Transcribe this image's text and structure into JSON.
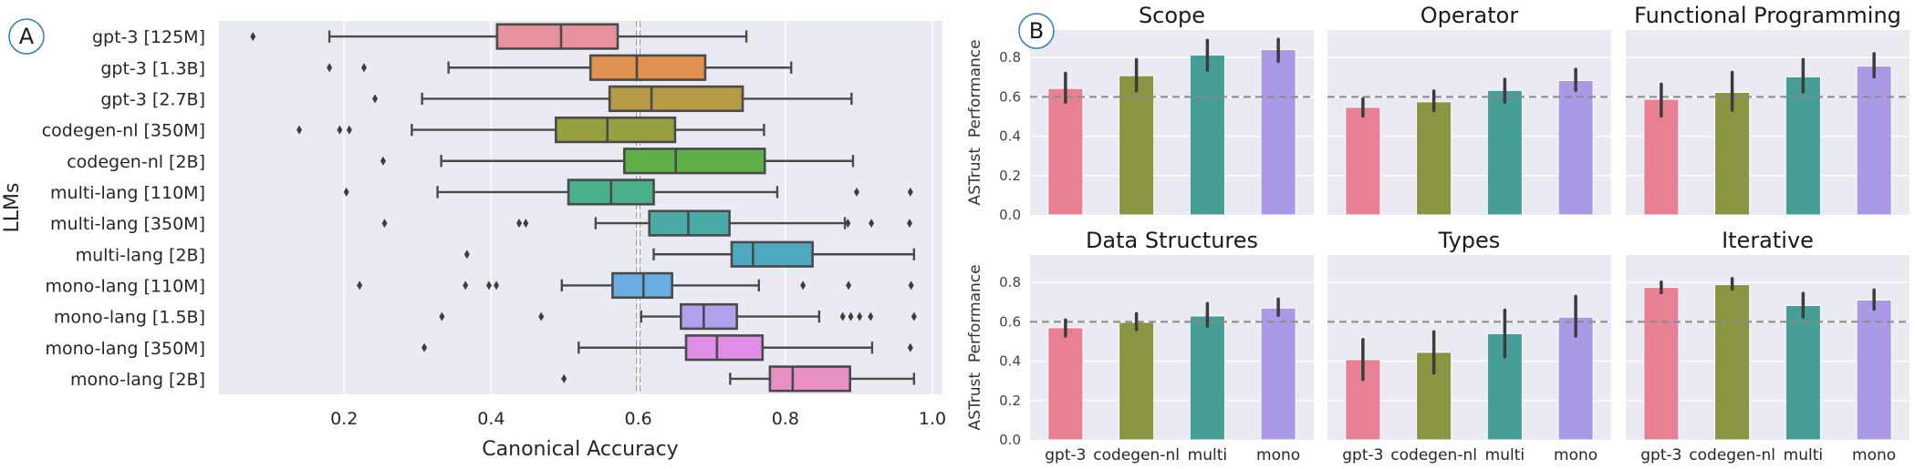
{
  "chart_data": [
    {
      "id": "A",
      "type": "boxplot",
      "panel_label": "A",
      "orientation": "horizontal",
      "title": "",
      "xlabel": "Canonical Accuracy",
      "ylabel": "LLMs",
      "xlim": [
        -0.03,
        1.02
      ],
      "xticks": [
        0.2,
        0.4,
        0.6,
        0.8,
        1.0
      ],
      "xtick_labels": [
        "0.2",
        "0.4",
        "0.6",
        "0.8",
        "1.0"
      ],
      "grid": true,
      "reference_line": 0.6,
      "categories": [
        "gpt-3 [125M]",
        "gpt-3 [1.3B]",
        "gpt-3 [2.7B]",
        "codegen-nl [350M]",
        "codegen-nl [2B]",
        "multi-lang [110M]",
        "multi-lang [350M]",
        "multi-lang [2B]",
        "mono-lang [110M]",
        "mono-lang [1.5B]",
        "mono-lang [350M]",
        "mono-lang [2B]"
      ],
      "colors": [
        "#e8919e",
        "#e0904f",
        "#b69a45",
        "#97a040",
        "#5eaf47",
        "#48b08a",
        "#4aaba6",
        "#4ea9c0",
        "#6aade3",
        "#b3a0ec",
        "#e08de6",
        "#e88fc4"
      ],
      "boxes": [
        {
          "whisker_low": 0.18,
          "q1": 0.408,
          "median": 0.495,
          "q3": 0.572,
          "whisker_high": 0.747,
          "outliers": [
            0.076
          ]
        },
        {
          "whisker_low": 0.342,
          "q1": 0.535,
          "median": 0.598,
          "q3": 0.691,
          "whisker_high": 0.808,
          "outliers": [
            0.18,
            0.227
          ]
        },
        {
          "whisker_low": 0.306,
          "q1": 0.561,
          "median": 0.618,
          "q3": 0.742,
          "whisker_high": 0.89,
          "outliers": [
            0.242
          ]
        },
        {
          "whisker_low": 0.292,
          "q1": 0.488,
          "median": 0.558,
          "q3": 0.65,
          "whisker_high": 0.771,
          "outliers": [
            0.139,
            0.194,
            0.207
          ]
        },
        {
          "whisker_low": 0.332,
          "q1": 0.581,
          "median": 0.651,
          "q3": 0.772,
          "whisker_high": 0.892,
          "outliers": [
            0.253
          ]
        },
        {
          "whisker_low": 0.327,
          "q1": 0.505,
          "median": 0.563,
          "q3": 0.621,
          "whisker_high": 0.789,
          "outliers": [
            0.203,
            0.897,
            0.97
          ]
        },
        {
          "whisker_low": 0.542,
          "q1": 0.615,
          "median": 0.668,
          "q3": 0.724,
          "whisker_high": 0.881,
          "outliers": [
            0.255,
            0.438,
            0.447,
            0.885,
            0.917,
            0.969
          ]
        },
        {
          "whisker_low": 0.621,
          "q1": 0.727,
          "median": 0.756,
          "q3": 0.837,
          "whisker_high": 0.975,
          "outliers": [
            0.367
          ]
        },
        {
          "whisker_low": 0.496,
          "q1": 0.565,
          "median": 0.607,
          "q3": 0.646,
          "whisker_high": 0.764,
          "outliers": [
            0.221,
            0.365,
            0.397,
            0.407,
            0.824,
            0.886,
            0.971
          ]
        },
        {
          "whisker_low": 0.604,
          "q1": 0.658,
          "median": 0.689,
          "q3": 0.734,
          "whisker_high": 0.846,
          "outliers": [
            0.333,
            0.468,
            0.878,
            0.889,
            0.901,
            0.916,
            0.975
          ]
        },
        {
          "whisker_low": 0.519,
          "q1": 0.665,
          "median": 0.707,
          "q3": 0.769,
          "whisker_high": 0.918,
          "outliers": [
            0.309,
            0.97
          ]
        },
        {
          "whisker_low": 0.725,
          "q1": 0.779,
          "median": 0.81,
          "q3": 0.888,
          "whisker_high": 0.975,
          "outliers": [
            0.499
          ]
        }
      ]
    },
    {
      "id": "B",
      "type": "bar",
      "panel_label": "B",
      "ylabel": "ASTrust  Performance",
      "ylabel_parts": [
        "ASTrust",
        "Performance"
      ],
      "ylim": [
        0.0,
        0.93
      ],
      "yticks": [
        0.0,
        0.2,
        0.4,
        0.6,
        0.8
      ],
      "ytick_labels": [
        "0.0",
        "0.2",
        "0.4",
        "0.6",
        "0.8"
      ],
      "grid": true,
      "reference_line": 0.6,
      "categories": [
        "gpt-3",
        "codegen-nl",
        "multi",
        "mono"
      ],
      "colors": [
        "#e88093",
        "#8b9441",
        "#469e96",
        "#ab99e6"
      ],
      "subplots": [
        {
          "title": "Scope",
          "values": [
            0.643,
            0.708,
            0.813,
            0.84
          ],
          "err_low": [
            0.573,
            0.63,
            0.735,
            0.78
          ],
          "err_high": [
            0.72,
            0.79,
            0.888,
            0.893
          ]
        },
        {
          "title": "Operator",
          "values": [
            0.547,
            0.575,
            0.633,
            0.683
          ],
          "err_low": [
            0.503,
            0.53,
            0.573,
            0.633
          ],
          "err_high": [
            0.59,
            0.63,
            0.69,
            0.74
          ]
        },
        {
          "title": "Functional Programming",
          "values": [
            0.588,
            0.623,
            0.702,
            0.757
          ],
          "err_low": [
            0.503,
            0.532,
            0.625,
            0.702
          ],
          "err_high": [
            0.665,
            0.725,
            0.79,
            0.82
          ]
        },
        {
          "title": "Data Structures",
          "values": [
            0.57,
            0.597,
            0.63,
            0.67
          ],
          "err_low": [
            0.528,
            0.56,
            0.578,
            0.633
          ],
          "err_high": [
            0.61,
            0.642,
            0.693,
            0.716
          ]
        },
        {
          "title": "Types",
          "values": [
            0.408,
            0.445,
            0.54,
            0.624
          ],
          "err_low": [
            0.307,
            0.34,
            0.422,
            0.528
          ],
          "err_high": [
            0.51,
            0.55,
            0.66,
            0.73
          ]
        },
        {
          "title": "Iterative",
          "values": [
            0.775,
            0.789,
            0.683,
            0.711
          ],
          "err_low": [
            0.748,
            0.766,
            0.624,
            0.665
          ],
          "err_high": [
            0.802,
            0.82,
            0.745,
            0.762
          ]
        }
      ]
    }
  ]
}
